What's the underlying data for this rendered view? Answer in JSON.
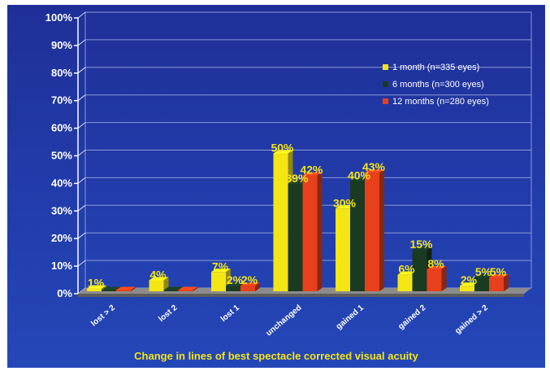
{
  "chart_data": {
    "type": "bar",
    "title": "",
    "xlabel": "Change in lines of best spectacle corrected visual acuity",
    "ylabel": "",
    "ylim": [
      0,
      100
    ],
    "yticks": [
      "0%",
      "10%",
      "20%",
      "30%",
      "40%",
      "50%",
      "60%",
      "70%",
      "80%",
      "90%",
      "100%"
    ],
    "categories": [
      "lost > 2",
      "lost 2",
      "lost 1",
      "unchanged",
      "gained 1",
      "gained 2",
      "gained > 2"
    ],
    "series": [
      {
        "name": "1 month (n=335 eyes)",
        "color": "#f4e514",
        "values": [
          1,
          4,
          7,
          50,
          30,
          6,
          2
        ],
        "labels": [
          "1%",
          "4%",
          "7%",
          "50%",
          "30%",
          "6%",
          "2%"
        ]
      },
      {
        "name": "6 months (n=300 eyes)",
        "color": "#1b3a22",
        "values": [
          0,
          0,
          2,
          39,
          40,
          15,
          5
        ],
        "labels": [
          "",
          "",
          "2%",
          "39%",
          "40%",
          "15%",
          "5%"
        ]
      },
      {
        "name": "12 months  (n=280 eyes)",
        "color": "#e8401c",
        "values": [
          0,
          0,
          2,
          42,
          43,
          8,
          5
        ],
        "labels": [
          "",
          "",
          "2%",
          "42%",
          "43%",
          "8%",
          "5%"
        ]
      }
    ],
    "grid": true,
    "legend_position": "top-right"
  }
}
